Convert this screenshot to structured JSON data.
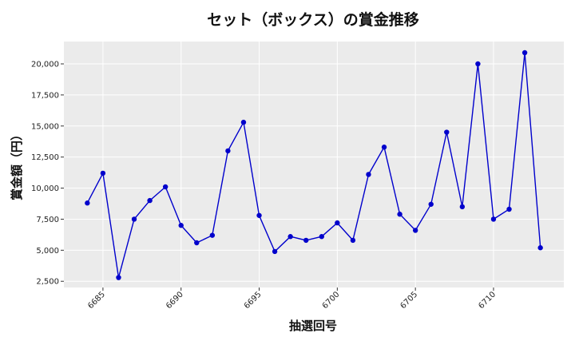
{
  "chart_data": {
    "type": "line",
    "title": "セット（ボックス）の賞金推移",
    "xlabel": "抽選回号",
    "ylabel": "賞金額（円）",
    "xlim": [
      6682.5,
      6714.5
    ],
    "ylim": [
      2000,
      21800
    ],
    "x_ticks": [
      6685,
      6690,
      6695,
      6700,
      6705,
      6710
    ],
    "y_ticks": [
      2500,
      5000,
      7500,
      10000,
      12500,
      15000,
      17500,
      20000
    ],
    "x_tick_labels": [
      "6685",
      "6690",
      "6695",
      "6700",
      "6705",
      "6710"
    ],
    "y_tick_labels": [
      "2,500",
      "5,000",
      "7,500",
      "10,000",
      "12,500",
      "15,000",
      "17,500",
      "20,000"
    ],
    "grid": true,
    "colors": {
      "line": "#0000cc",
      "plot_bg": "#ebebeb"
    },
    "series": [
      {
        "x": [
          6684,
          6685,
          6686,
          6687,
          6688,
          6689,
          6690,
          6691,
          6692,
          6693,
          6694,
          6695,
          6696,
          6697,
          6698,
          6699,
          6700,
          6701,
          6702,
          6703,
          6704,
          6705,
          6706,
          6707,
          6708,
          6709,
          6710,
          6711,
          6712,
          6713
        ],
        "values": [
          8800,
          11200,
          2800,
          7500,
          9000,
          10100,
          7000,
          5600,
          6200,
          13000,
          15300,
          7800,
          4900,
          6100,
          5800,
          6100,
          7200,
          5800,
          11100,
          13300,
          7900,
          6600,
          8700,
          14500,
          8500,
          20000,
          7500,
          8300,
          20900,
          5200
        ]
      }
    ]
  }
}
